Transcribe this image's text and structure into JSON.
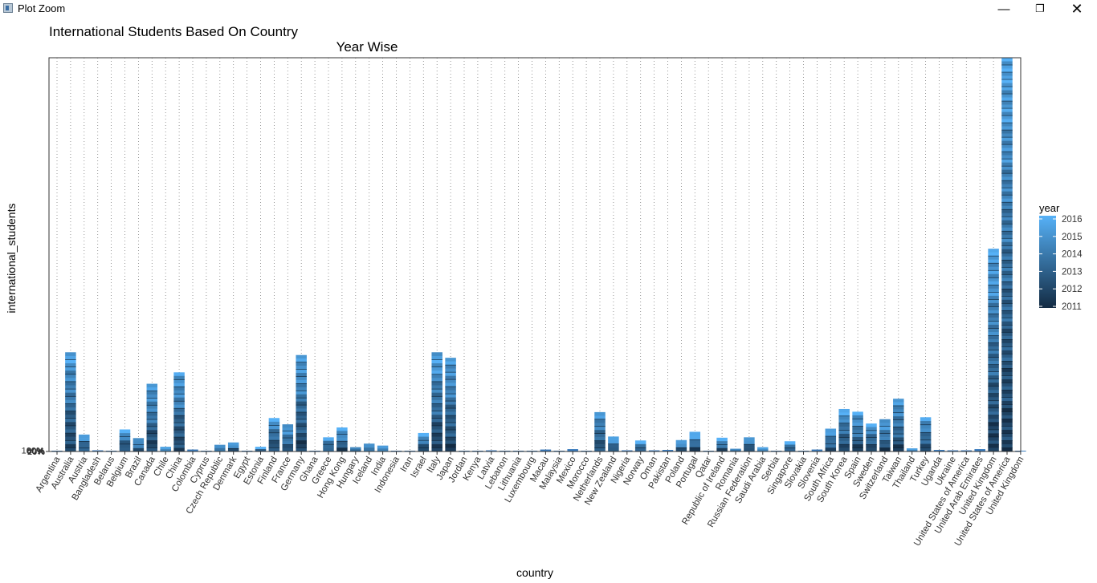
{
  "window": {
    "title": "Plot Zoom",
    "minimize_glyph": "—",
    "restore_glyph": "❐",
    "close_glyph": "✕",
    "icon": "plot-window-icon"
  },
  "chart_data": {
    "type": "bar",
    "stacked": true,
    "title": "International Students Based On Country",
    "subtitle": "Year Wise",
    "xlabel": "country",
    "ylabel": "international_students",
    "ylim": [
      0,
      100
    ],
    "y_tick_labels_overlapping_at_zero": [
      "20%",
      "40%",
      "60%",
      "80%",
      "100%"
    ],
    "grid": "dotted vertical",
    "legend": {
      "title": "year",
      "placement": "right",
      "ticks": [
        "2016",
        "2015",
        "2014",
        "2013",
        "2012",
        "2011"
      ],
      "color_low": "#132B43",
      "color_high": "#56B1F7"
    },
    "categories": [
      "Argentina",
      "Australia",
      "Austria",
      "Bangladesh",
      "Belarus",
      "Belgium",
      "Brazil",
      "Canada",
      "Chile",
      "China",
      "Colombia",
      "Cyprus",
      "Czech Republic",
      "Denmark",
      "Egypt",
      "Estonia",
      "Finland",
      "France",
      "Germany",
      "Ghana",
      "Greece",
      "Hong Kong",
      "Hungary",
      "Iceland",
      "India",
      "Indonesia",
      "Iran",
      "Israel",
      "Italy",
      "Japan",
      "Jordan",
      "Kenya",
      "Latvia",
      "Lebanon",
      "Lithuania",
      "Luxembourg",
      "Macau",
      "Malaysia",
      "Mexico",
      "Morocco",
      "Netherlands",
      "New Zealand",
      "Nigeria",
      "Norway",
      "Oman",
      "Pakistan",
      "Poland",
      "Portugal",
      "Qatar",
      "Republic of Ireland",
      "Romania",
      "Russian Federation",
      "Saudi Arabia",
      "Serbia",
      "Singapore",
      "Slovakia",
      "Slovenia",
      "South Africa",
      "South Korea",
      "Spain",
      "Sweden",
      "Switzerland",
      "Taiwan",
      "Thailand",
      "Turkey",
      "Uganda",
      "Ukraine",
      "United States of America",
      "United Arab Emirates",
      "United Kingdom",
      "United States of America",
      "United Kingdom"
    ],
    "values": [
      0.1,
      25.2,
      4.3,
      0.3,
      0.2,
      5.6,
      3.4,
      17.2,
      1.2,
      20.1,
      0.5,
      0.2,
      1.7,
      2.3,
      0.2,
      1.2,
      8.5,
      6.9,
      24.5,
      0.2,
      3.6,
      6.1,
      1.1,
      2.0,
      1.5,
      0.2,
      0.2,
      4.7,
      25.2,
      23.8,
      0.2,
      0.1,
      0.3,
      0.1,
      0.2,
      0.2,
      0.5,
      0.2,
      0.6,
      0.2,
      10.0,
      3.8,
      0.3,
      2.8,
      0.3,
      0.4,
      2.9,
      5.0,
      0.1,
      3.5,
      0.7,
      3.6,
      1.1,
      0.1,
      2.6,
      0.2,
      0.5,
      5.8,
      10.8,
      10.1,
      7.1,
      8.2,
      13.4,
      0.8,
      8.7,
      0.4,
      0.3,
      0.3,
      0.6,
      51.5,
      100.0,
      0.2
    ]
  }
}
